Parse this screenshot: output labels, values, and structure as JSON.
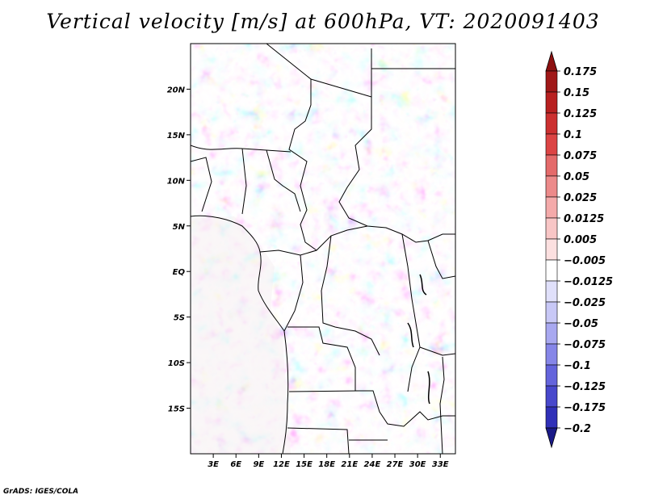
{
  "title": "Vertical velocity [m/s] at 600hPa, VT: 2020091403",
  "credit": "GrADS: IGES/COLA",
  "colors": {
    "red_strong": "#a01818",
    "red_mid": "#e06060",
    "red_light": "#f6c8c8",
    "white": "#ffffff",
    "blue_light": "#c8c8f4",
    "blue_mid": "#7070e0",
    "blue_strong": "#2020a8"
  },
  "chart_data": {
    "type": "heatmap",
    "variable": "Vertical velocity",
    "units": "m/s",
    "level": "600hPa",
    "valid_time": "2020091403",
    "x_range": [
      0,
      35
    ],
    "y_range": [
      -20,
      25
    ],
    "x_ticks": [
      {
        "value": 3,
        "label": "3E"
      },
      {
        "value": 6,
        "label": "6E"
      },
      {
        "value": 9,
        "label": "9E"
      },
      {
        "value": 12,
        "label": "12E"
      },
      {
        "value": 15,
        "label": "15E"
      },
      {
        "value": 18,
        "label": "18E"
      },
      {
        "value": 21,
        "label": "21E"
      },
      {
        "value": 24,
        "label": "24E"
      },
      {
        "value": 27,
        "label": "27E"
      },
      {
        "value": 30,
        "label": "30E"
      },
      {
        "value": 33,
        "label": "33E"
      }
    ],
    "y_ticks": [
      {
        "value": 20,
        "label": "20N"
      },
      {
        "value": 15,
        "label": "15N"
      },
      {
        "value": 10,
        "label": "10N"
      },
      {
        "value": 5,
        "label": "5N"
      },
      {
        "value": 0,
        "label": "EQ"
      },
      {
        "value": -5,
        "label": "5S"
      },
      {
        "value": -10,
        "label": "10S"
      },
      {
        "value": -15,
        "label": "15S"
      }
    ],
    "colorbar": {
      "levels": [
        {
          "label": "0.175",
          "color": "#a01818"
        },
        {
          "label": "0.15",
          "color": "#b82020"
        },
        {
          "label": "0.125",
          "color": "#cc3030"
        },
        {
          "label": "0.1",
          "color": "#dc4444"
        },
        {
          "label": "0.075",
          "color": "#e46a6a"
        },
        {
          "label": "0.05",
          "color": "#ec8a8a"
        },
        {
          "label": "0.025",
          "color": "#f4aaaa"
        },
        {
          "label": "0.0125",
          "color": "#f8c6c6"
        },
        {
          "label": "0.005",
          "color": "#fce0e0"
        },
        {
          "label": "-0.005",
          "color": "#ffffff"
        },
        {
          "label": "-0.0125",
          "color": "#e0e0fa"
        },
        {
          "label": "-0.025",
          "color": "#c8c8f6"
        },
        {
          "label": "-0.05",
          "color": "#a8a8f0"
        },
        {
          "label": "-0.075",
          "color": "#8686e8"
        },
        {
          "label": "-0.1",
          "color": "#6464dc"
        },
        {
          "label": "-0.125",
          "color": "#4848cc"
        },
        {
          "label": "-0.175",
          "color": "#3030b8"
        },
        {
          "label": "-0.2",
          "color": "#2020a0"
        }
      ],
      "top_extend_color": "#8c1010",
      "bottom_extend_color": "#1a1a88"
    }
  }
}
